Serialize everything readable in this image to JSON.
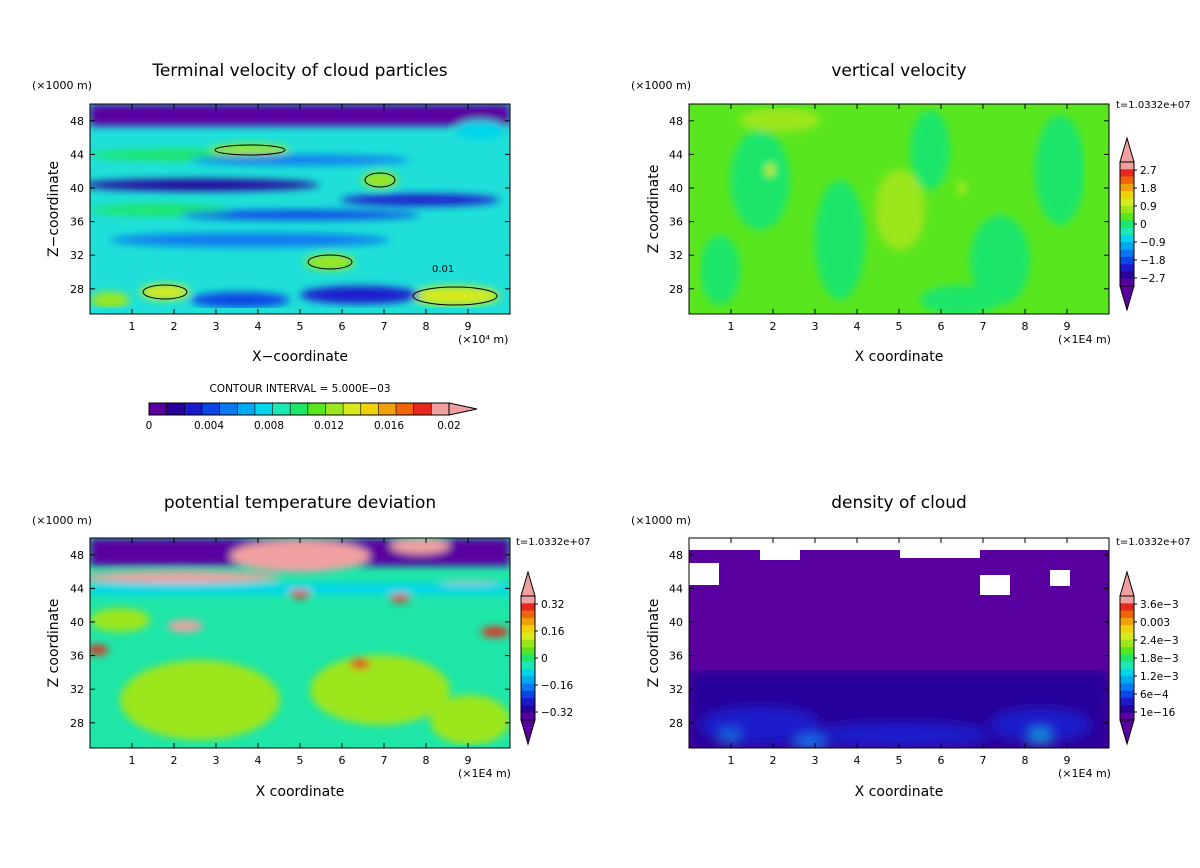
{
  "colors": {
    "palette": [
      "#5a00a0",
      "#28009a",
      "#1a1acc",
      "#0a46e6",
      "#0a78f0",
      "#00aaf0",
      "#00d6ea",
      "#1ce8b4",
      "#1ee66a",
      "#5ae61e",
      "#9ce61e",
      "#d6ea1e",
      "#f0d20a",
      "#f0a00a",
      "#f0640a",
      "#e6281e",
      "#f0a0a0"
    ]
  },
  "chart_data": [
    {
      "type": "heatmap",
      "title": "Terminal velocity of cloud particles",
      "xlabel": "X−coordinate",
      "ylabel": "Z−coordinate",
      "x_unit": "(×10⁴ m)",
      "y_unit": "(×1000 m)",
      "x_ticks": [
        "1",
        "2",
        "3",
        "4",
        "5",
        "6",
        "7",
        "8",
        "9"
      ],
      "y_ticks": [
        "28",
        "32",
        "36",
        "40",
        "44",
        "48"
      ],
      "xlim": [
        0,
        10
      ],
      "ylim": [
        25,
        50
      ],
      "contour_interval_label": "CONTOUR INTERVAL = 5.000E−03",
      "contour_label": "0.01",
      "colorbar": {
        "orientation": "horizontal",
        "labels": [
          "0",
          "0.004",
          "0.008",
          "0.012",
          "0.016",
          "0.02"
        ]
      }
    },
    {
      "type": "heatmap",
      "title": "vertical velocity",
      "xlabel": "X coordinate",
      "ylabel": "Z coordinate",
      "x_unit": "(×1E4 m)",
      "y_unit": "(×1000 m)",
      "time_label": "t=1.0332e+07",
      "x_ticks": [
        "1",
        "2",
        "3",
        "4",
        "5",
        "6",
        "7",
        "8",
        "9"
      ],
      "y_ticks": [
        "28",
        "32",
        "36",
        "40",
        "44",
        "48"
      ],
      "xlim": [
        0,
        10
      ],
      "ylim": [
        25,
        50
      ],
      "colorbar": {
        "orientation": "vertical",
        "labels": [
          "2.7",
          "1.8",
          "0.9",
          "0",
          "−0.9",
          "−1.8",
          "−2.7"
        ]
      }
    },
    {
      "type": "heatmap",
      "title": "potential temperature deviation",
      "xlabel": "X coordinate",
      "ylabel": "Z coordinate",
      "x_unit": "(×1E4 m)",
      "y_unit": "(×1000 m)",
      "time_label": "t=1.0332e+07",
      "x_ticks": [
        "1",
        "2",
        "3",
        "4",
        "5",
        "6",
        "7",
        "8",
        "9"
      ],
      "y_ticks": [
        "28",
        "32",
        "36",
        "40",
        "44",
        "48"
      ],
      "xlim": [
        0,
        10
      ],
      "ylim": [
        25,
        50
      ],
      "colorbar": {
        "orientation": "vertical",
        "labels": [
          "0.32",
          "0.16",
          "0",
          "−0.16",
          "−0.32"
        ]
      }
    },
    {
      "type": "heatmap",
      "title": "density of cloud",
      "xlabel": "X coordinate",
      "ylabel": "Z coordinate",
      "x_unit": "(×1E4 m)",
      "y_unit": "(×1000 m)",
      "time_label": "t=1.0332e+07",
      "x_ticks": [
        "1",
        "2",
        "3",
        "4",
        "5",
        "6",
        "7",
        "8",
        "9"
      ],
      "y_ticks": [
        "28",
        "32",
        "36",
        "40",
        "44",
        "48"
      ],
      "xlim": [
        0,
        10
      ],
      "ylim": [
        25,
        50
      ],
      "colorbar": {
        "orientation": "vertical",
        "labels": [
          "3.6e−3",
          "0.003",
          "2.4e−3",
          "1.8e−3",
          "1.2e−3",
          "6e−4",
          "1e−16"
        ]
      }
    }
  ]
}
